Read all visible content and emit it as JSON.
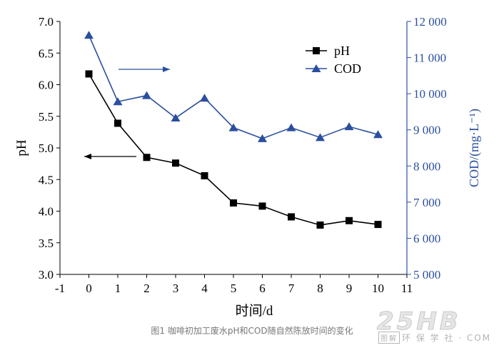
{
  "chart_data": {
    "type": "line",
    "xlabel": "时间/d",
    "ylabel_left": "pH",
    "ylabel_right": "COD/(mg·L⁻¹)",
    "x_ticks": [
      "-1",
      "0",
      "1",
      "2",
      "3",
      "4",
      "5",
      "6",
      "7",
      "8",
      "9",
      "10",
      "11"
    ],
    "xlim": [
      -1,
      11
    ],
    "ylim_left": [
      3.0,
      7.0
    ],
    "y_ticks_left": [
      "3.0",
      "3.5",
      "4.0",
      "4.5",
      "5.0",
      "5.5",
      "6.0",
      "6.5",
      "7.0"
    ],
    "ylim_right": [
      5000,
      12000
    ],
    "y_ticks_right": [
      "5 000",
      "6 000",
      "7 000",
      "8 000",
      "9 000",
      "10 000",
      "11 000",
      "12 000"
    ],
    "legend_position": "top-right",
    "colors": {
      "ph": "#000000",
      "cod": "#2b4f9e"
    },
    "series": [
      {
        "name": "pH",
        "axis": "left",
        "marker": "square",
        "x": [
          0,
          1,
          2,
          3,
          4,
          5,
          6,
          7,
          8,
          9,
          10
        ],
        "values": [
          6.17,
          5.39,
          4.85,
          4.76,
          4.56,
          4.13,
          4.08,
          3.91,
          3.78,
          3.85,
          3.79
        ]
      },
      {
        "name": "COD",
        "axis": "right",
        "marker": "triangle",
        "x": [
          0,
          1,
          2,
          3,
          4,
          5,
          6,
          7,
          8,
          9,
          10
        ],
        "values": [
          11620,
          9780,
          9950,
          9330,
          9880,
          9060,
          8760,
          9060,
          8790,
          9090,
          8870
        ]
      }
    ],
    "annotations": [
      {
        "type": "arrow",
        "direction": "right",
        "points_to": "COD"
      },
      {
        "type": "arrow",
        "direction": "left",
        "points_to": "pH"
      }
    ]
  },
  "caption": "图1  咖啡初加工废水pH和COD随自然陈放时间的变化",
  "watermark": {
    "main": "25HB",
    "badge": "图解",
    "sub": "环 保 学 社 · COM"
  }
}
